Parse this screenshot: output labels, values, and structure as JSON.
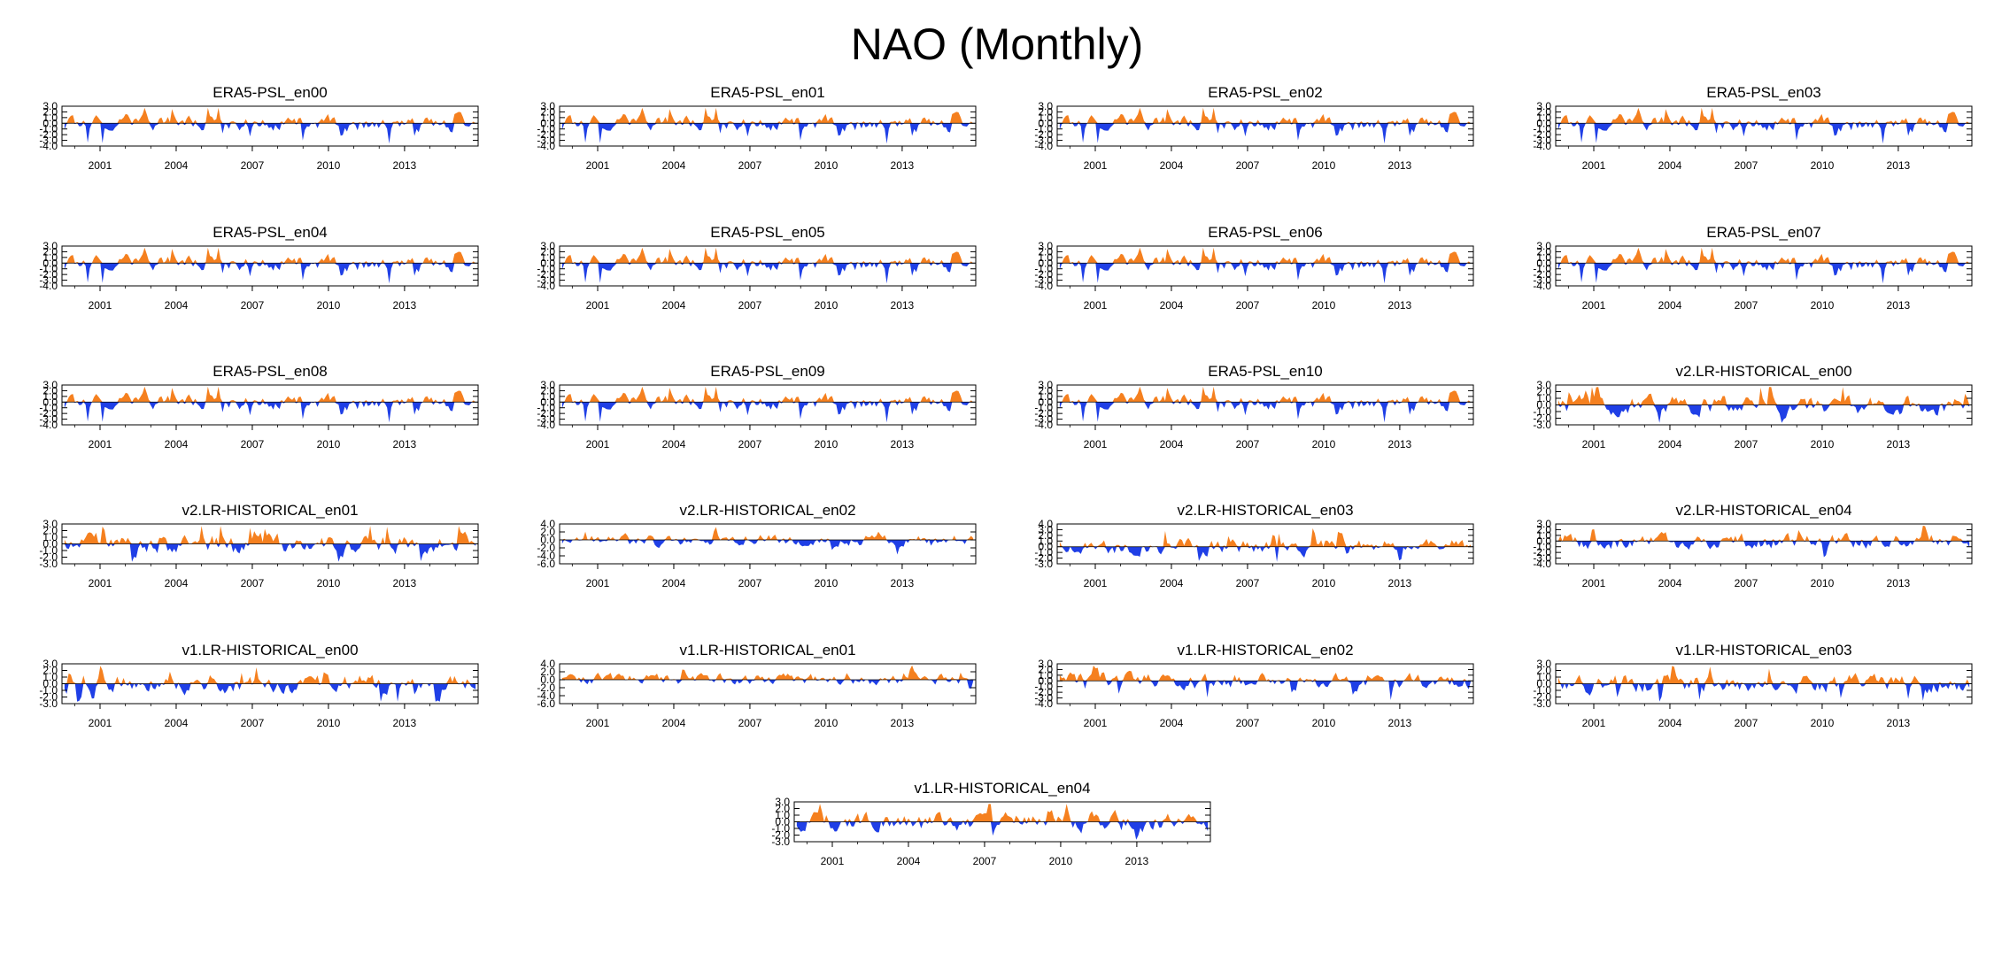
{
  "title": "NAO (Monthly)",
  "colors": {
    "positive": "#f5801f",
    "negative": "#1f3fe6",
    "axis": "#000000",
    "zero_line": "#000000"
  },
  "x_tick_labels": [
    "2001",
    "2004",
    "2007",
    "2010",
    "2013"
  ],
  "chart_data": [
    {
      "type": "area",
      "title": "ERA5-PSL_en00",
      "x_range": [
        1999.5,
        2015.9
      ],
      "ylim": [
        -4,
        3
      ],
      "y_ticks": [
        "3.0",
        "2.0",
        "1.0",
        "0.0",
        "-1.0",
        "-2.0",
        "-3.0",
        "-4.0"
      ],
      "x_ticks": [
        2001,
        2004,
        2007,
        2010,
        2013
      ],
      "seed": 11
    },
    {
      "type": "area",
      "title": "ERA5-PSL_en01",
      "x_range": [
        1999.5,
        2015.9
      ],
      "ylim": [
        -4,
        3
      ],
      "y_ticks": [
        "3.0",
        "2.0",
        "1.0",
        "0.0",
        "-1.0",
        "-2.0",
        "-3.0",
        "-4.0"
      ],
      "x_ticks": [
        2001,
        2004,
        2007,
        2010,
        2013
      ],
      "seed": 11
    },
    {
      "type": "area",
      "title": "ERA5-PSL_en02",
      "x_range": [
        1999.5,
        2015.9
      ],
      "ylim": [
        -4,
        3
      ],
      "y_ticks": [
        "3.0",
        "2.0",
        "1.0",
        "0.0",
        "-1.0",
        "-2.0",
        "-3.0",
        "-4.0"
      ],
      "x_ticks": [
        2001,
        2004,
        2007,
        2010,
        2013
      ],
      "seed": 11
    },
    {
      "type": "area",
      "title": "ERA5-PSL_en03",
      "x_range": [
        1999.5,
        2015.9
      ],
      "ylim": [
        -4,
        3
      ],
      "y_ticks": [
        "3.0",
        "2.0",
        "1.0",
        "0.0",
        "-1.0",
        "-2.0",
        "-3.0",
        "-4.0"
      ],
      "x_ticks": [
        2001,
        2004,
        2007,
        2010,
        2013
      ],
      "seed": 11
    },
    {
      "type": "area",
      "title": "ERA5-PSL_en04",
      "x_range": [
        1999.5,
        2015.9
      ],
      "ylim": [
        -4,
        3
      ],
      "y_ticks": [
        "3.0",
        "2.0",
        "1.0",
        "0.0",
        "-1.0",
        "-2.0",
        "-3.0",
        "-4.0"
      ],
      "x_ticks": [
        2001,
        2004,
        2007,
        2010,
        2013
      ],
      "seed": 11
    },
    {
      "type": "area",
      "title": "ERA5-PSL_en05",
      "x_range": [
        1999.5,
        2015.9
      ],
      "ylim": [
        -4,
        3
      ],
      "y_ticks": [
        "3.0",
        "2.0",
        "1.0",
        "0.0",
        "-1.0",
        "-2.0",
        "-3.0",
        "-4.0"
      ],
      "x_ticks": [
        2001,
        2004,
        2007,
        2010,
        2013
      ],
      "seed": 11
    },
    {
      "type": "area",
      "title": "ERA5-PSL_en06",
      "x_range": [
        1999.5,
        2015.9
      ],
      "ylim": [
        -4,
        3
      ],
      "y_ticks": [
        "3.0",
        "2.0",
        "1.0",
        "0.0",
        "-1.0",
        "-2.0",
        "-3.0",
        "-4.0"
      ],
      "x_ticks": [
        2001,
        2004,
        2007,
        2010,
        2013
      ],
      "seed": 11
    },
    {
      "type": "area",
      "title": "ERA5-PSL_en07",
      "x_range": [
        1999.5,
        2015.9
      ],
      "ylim": [
        -4,
        3
      ],
      "y_ticks": [
        "3.0",
        "2.0",
        "1.0",
        "0.0",
        "-1.0",
        "-2.0",
        "-3.0",
        "-4.0"
      ],
      "x_ticks": [
        2001,
        2004,
        2007,
        2010,
        2013
      ],
      "seed": 11
    },
    {
      "type": "area",
      "title": "ERA5-PSL_en08",
      "x_range": [
        1999.5,
        2015.9
      ],
      "ylim": [
        -4,
        3
      ],
      "y_ticks": [
        "3.0",
        "2.0",
        "1.0",
        "0.0",
        "-1.0",
        "-2.0",
        "-3.0",
        "-4.0"
      ],
      "x_ticks": [
        2001,
        2004,
        2007,
        2010,
        2013
      ],
      "seed": 11
    },
    {
      "type": "area",
      "title": "ERA5-PSL_en09",
      "x_range": [
        1999.5,
        2015.9
      ],
      "ylim": [
        -4,
        3
      ],
      "y_ticks": [
        "3.0",
        "2.0",
        "1.0",
        "0.0",
        "-1.0",
        "-2.0",
        "-3.0",
        "-4.0"
      ],
      "x_ticks": [
        2001,
        2004,
        2007,
        2010,
        2013
      ],
      "seed": 11
    },
    {
      "type": "area",
      "title": "ERA5-PSL_en10",
      "x_range": [
        1999.5,
        2015.9
      ],
      "ylim": [
        -4,
        3
      ],
      "y_ticks": [
        "3.0",
        "2.0",
        "1.0",
        "0.0",
        "-1.0",
        "-2.0",
        "-3.0",
        "-4.0"
      ],
      "x_ticks": [
        2001,
        2004,
        2007,
        2010,
        2013
      ],
      "seed": 11
    },
    {
      "type": "area",
      "title": "v2.LR-HISTORICAL_en00",
      "x_range": [
        1999.5,
        2015.9
      ],
      "ylim": [
        -3,
        3
      ],
      "y_ticks": [
        "3.0",
        "2.0",
        "1.0",
        "0.0",
        "-1.0",
        "-2.0",
        "-3.0"
      ],
      "x_ticks": [
        2001,
        2004,
        2007,
        2010,
        2013
      ],
      "seed": 23
    },
    {
      "type": "area",
      "title": "v2.LR-HISTORICAL_en01",
      "x_range": [
        1999.5,
        2015.9
      ],
      "ylim": [
        -3,
        3
      ],
      "y_ticks": [
        "3.0",
        "2.0",
        "1.0",
        "0.0",
        "-1.0",
        "-2.0",
        "-3.0"
      ],
      "x_ticks": [
        2001,
        2004,
        2007,
        2010,
        2013
      ],
      "seed": 37
    },
    {
      "type": "area",
      "title": "v2.LR-HISTORICAL_en02",
      "x_range": [
        1999.5,
        2015.9
      ],
      "ylim": [
        -6,
        4
      ],
      "y_ticks": [
        "4.0",
        "2.0",
        "0.0",
        "-2.0",
        "-4.0",
        "-6.0"
      ],
      "x_ticks": [
        2001,
        2004,
        2007,
        2010,
        2013
      ],
      "seed": 41
    },
    {
      "type": "area",
      "title": "v2.LR-HISTORICAL_en03",
      "x_range": [
        1999.5,
        2015.9
      ],
      "ylim": [
        -3,
        4
      ],
      "y_ticks": [
        "4.0",
        "3.0",
        "2.0",
        "1.0",
        "0.0",
        "-1.0",
        "-2.0",
        "-3.0"
      ],
      "x_ticks": [
        2001,
        2004,
        2007,
        2010,
        2013
      ],
      "seed": 53
    },
    {
      "type": "area",
      "title": "v2.LR-HISTORICAL_en04",
      "x_range": [
        1999.5,
        2015.9
      ],
      "ylim": [
        -4,
        3
      ],
      "y_ticks": [
        "3.0",
        "2.0",
        "1.0",
        "0.0",
        "-1.0",
        "-2.0",
        "-3.0",
        "-4.0"
      ],
      "x_ticks": [
        2001,
        2004,
        2007,
        2010,
        2013
      ],
      "seed": 61
    },
    {
      "type": "area",
      "title": "v1.LR-HISTORICAL_en00",
      "x_range": [
        1999.5,
        2015.9
      ],
      "ylim": [
        -3,
        3
      ],
      "y_ticks": [
        "3.0",
        "2.0",
        "1.0",
        "0.0",
        "-1.0",
        "-2.0",
        "-3.0"
      ],
      "x_ticks": [
        2001,
        2004,
        2007,
        2010,
        2013
      ],
      "seed": 71
    },
    {
      "type": "area",
      "title": "v1.LR-HISTORICAL_en01",
      "x_range": [
        1999.5,
        2015.9
      ],
      "ylim": [
        -6,
        4
      ],
      "y_ticks": [
        "4.0",
        "2.0",
        "0.0",
        "-2.0",
        "-4.0",
        "-6.0"
      ],
      "x_ticks": [
        2001,
        2004,
        2007,
        2010,
        2013
      ],
      "seed": 79
    },
    {
      "type": "area",
      "title": "v1.LR-HISTORICAL_en02",
      "x_range": [
        1999.5,
        2015.9
      ],
      "ylim": [
        -4,
        3
      ],
      "y_ticks": [
        "3.0",
        "2.0",
        "1.0",
        "0.0",
        "-1.0",
        "-2.0",
        "-3.0",
        "-4.0"
      ],
      "x_ticks": [
        2001,
        2004,
        2007,
        2010,
        2013
      ],
      "seed": 83
    },
    {
      "type": "area",
      "title": "v1.LR-HISTORICAL_en03",
      "x_range": [
        1999.5,
        2015.9
      ],
      "ylim": [
        -3,
        3
      ],
      "y_ticks": [
        "3.0",
        "2.0",
        "1.0",
        "0.0",
        "-1.0",
        "-2.0",
        "-3.0"
      ],
      "x_ticks": [
        2001,
        2004,
        2007,
        2010,
        2013
      ],
      "seed": 97
    },
    {
      "type": "area",
      "title": "v1.LR-HISTORICAL_en04",
      "x_range": [
        1999.5,
        2015.9
      ],
      "ylim": [
        -3,
        3
      ],
      "y_ticks": [
        "3.0",
        "2.0",
        "1.0",
        "0.0",
        "-1.0",
        "-2.0",
        "-3.0"
      ],
      "x_ticks": [
        2001,
        2004,
        2007,
        2010,
        2013
      ],
      "seed": 101
    }
  ]
}
